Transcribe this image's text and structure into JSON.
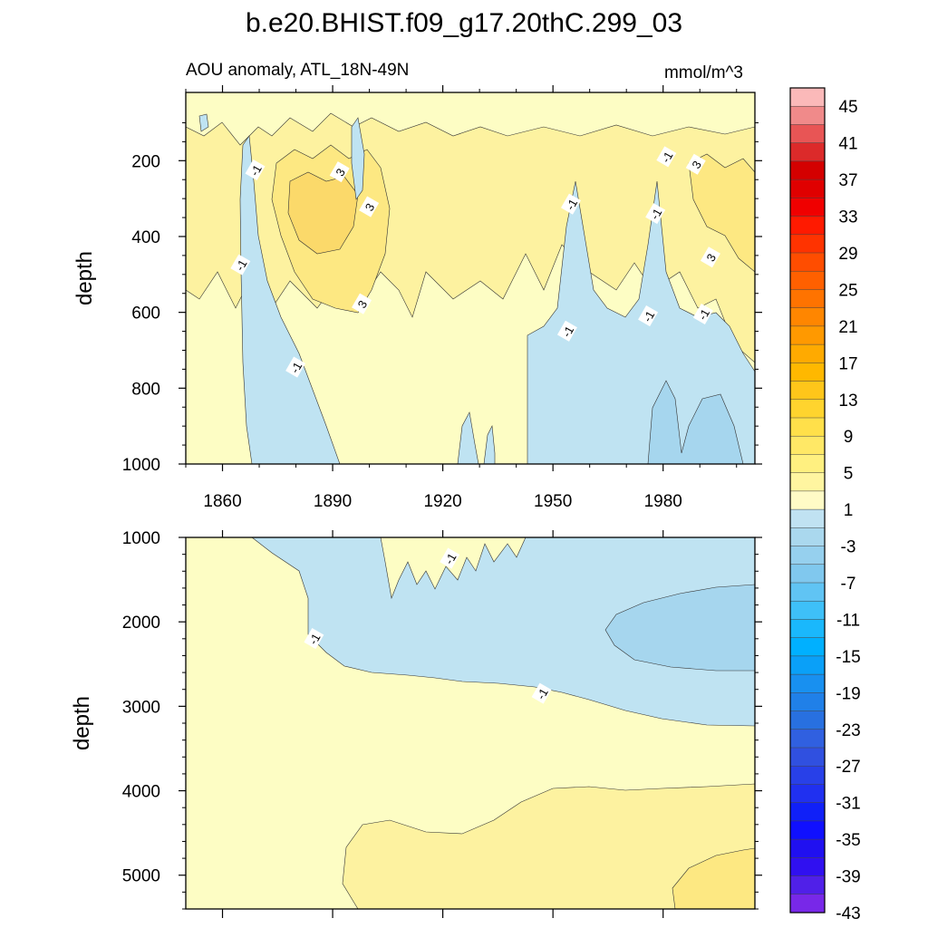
{
  "chart_data": [
    {
      "type": "contour",
      "panel": "upper",
      "title": "b.e20.BHIST.f09_g17.20thC.299_03",
      "subtitle_left": "AOU anomaly, ATL_18N-49N",
      "subtitle_right": "mmol/m^3",
      "xlabel": "",
      "ylabel": "depth",
      "xlim": [
        1850,
        2005
      ],
      "ylim": [
        1000,
        20
      ],
      "x_ticks": [
        "1860",
        "1890",
        "1920",
        "1950",
        "1980"
      ],
      "x_tick_values": [
        1860,
        1890,
        1920,
        1950,
        1980
      ],
      "y_ticks": [
        "200",
        "400",
        "600",
        "800",
        "1000"
      ],
      "y_tick_values": [
        200,
        400,
        600,
        800,
        1000
      ],
      "contour_labels": [
        {
          "text": "-1",
          "x": 1869,
          "y": 225
        },
        {
          "text": "3",
          "x": 1892,
          "y": 230
        },
        {
          "text": "3",
          "x": 1900,
          "y": 322
        },
        {
          "text": "-1",
          "x": 1865,
          "y": 475
        },
        {
          "text": "3",
          "x": 1898,
          "y": 578
        },
        {
          "text": "-1",
          "x": 1880,
          "y": 745
        },
        {
          "text": "-1",
          "x": 1954,
          "y": 650
        },
        {
          "text": "-1",
          "x": 1955,
          "y": 315
        },
        {
          "text": "-1",
          "x": 1976,
          "y": 610
        },
        {
          "text": "-1",
          "x": 1978,
          "y": 340
        },
        {
          "text": "-1",
          "x": 1981,
          "y": 190
        },
        {
          "text": "3",
          "x": 1989,
          "y": 210
        },
        {
          "text": "3",
          "x": 1993,
          "y": 455
        },
        {
          "text": "-1",
          "x": 1991,
          "y": 605
        }
      ]
    },
    {
      "type": "contour",
      "panel": "lower",
      "xlabel": "",
      "ylabel": "depth",
      "xlim": [
        1850,
        2005
      ],
      "ylim": [
        5400,
        1000
      ],
      "y_ticks": [
        "1000",
        "2000",
        "3000",
        "4000",
        "5000"
      ],
      "y_tick_values": [
        1000,
        2000,
        3000,
        4000,
        5000
      ],
      "contour_labels": [
        {
          "text": "-1",
          "x": 1922,
          "y": 1250
        },
        {
          "text": "-1",
          "x": 1885,
          "y": 2200
        },
        {
          "text": "-1",
          "x": 1947,
          "y": 2850
        }
      ]
    },
    {
      "type": "colorbar",
      "labels": [
        "45",
        "41",
        "37",
        "33",
        "29",
        "25",
        "21",
        "17",
        "13",
        "9",
        "5",
        "1",
        "-3",
        "-7",
        "-11",
        "-15",
        "-19",
        "-23",
        "-27",
        "-31",
        "-35",
        "-39",
        "-43"
      ],
      "colors": [
        "#fbb9b9",
        "#f08a8a",
        "#e85555",
        "#dc2a2a",
        "#d40000",
        "#e00000",
        "#f00000",
        "#ff1a00",
        "#ff3300",
        "#ff4d00",
        "#ff6000",
        "#ff7300",
        "#ff8600",
        "#ff9900",
        "#ffaa00",
        "#ffb800",
        "#ffc61a",
        "#ffd42e",
        "#ffe04a",
        "#ffe866",
        "#fff080",
        "#fff5a0",
        "#fffbc6",
        "#c0e2f2",
        "#aad8ee",
        "#96d0ee",
        "#80c8ee",
        "#60c4f4",
        "#3ec0f8",
        "#1ab8fc",
        "#00b0ff",
        "#0aa0f8",
        "#1890f0",
        "#2080e8",
        "#2870e0",
        "#3060e0",
        "#3050e0",
        "#2840e8",
        "#2030f0",
        "#1020f8",
        "#1010ff",
        "#2010f0",
        "#3010f0",
        "#5020e8",
        "#7828e8"
      ]
    }
  ],
  "fill_colors": {
    "pale_yellow": "#fdfdc4",
    "yellow1": "#fdf2a0",
    "yellow2": "#fde882",
    "yellow3": "#fbd96a",
    "light_blue": "#bfe3f2",
    "mid_blue": "#a6d6ee"
  }
}
